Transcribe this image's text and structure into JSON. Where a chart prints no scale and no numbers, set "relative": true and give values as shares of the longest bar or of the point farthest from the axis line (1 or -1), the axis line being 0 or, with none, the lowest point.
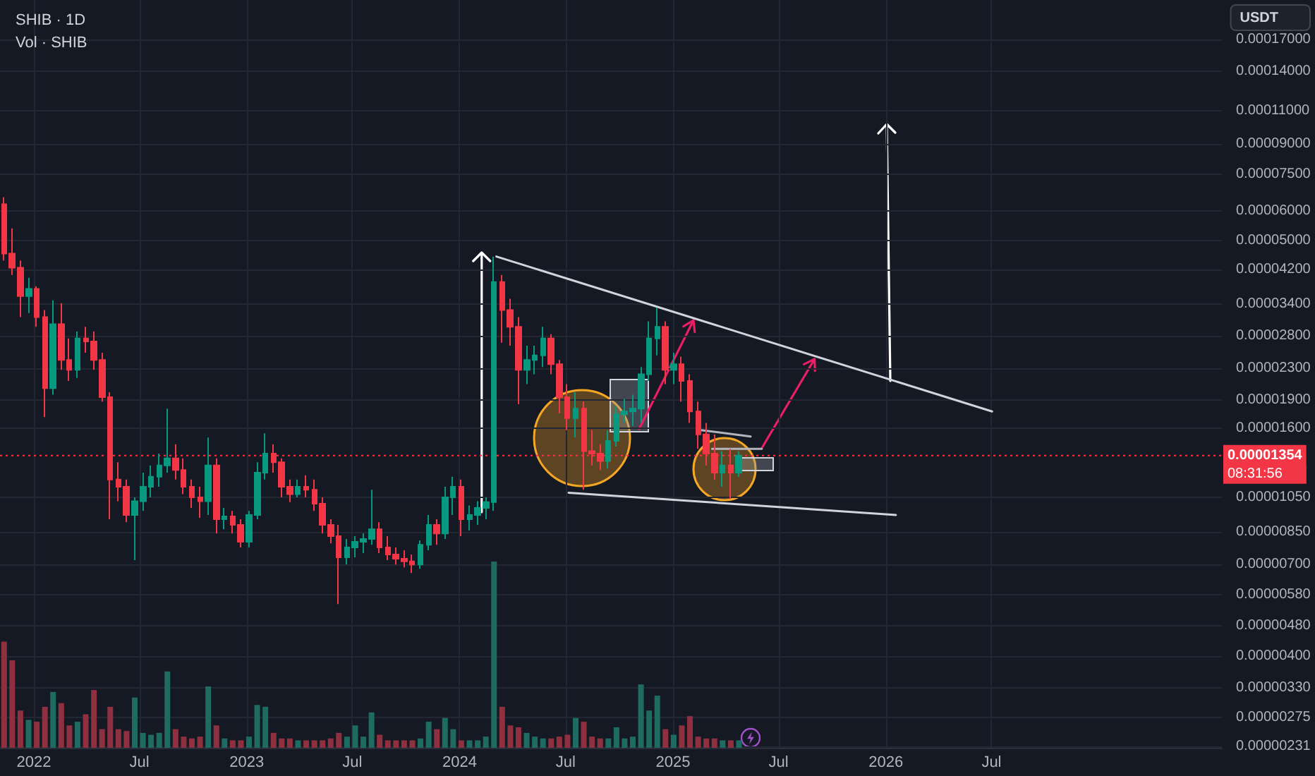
{
  "chart_data": [
    {
      "type": "candlestick",
      "title": "SHIB · 1D",
      "ylabel": "USDT",
      "log": true,
      "grid": true,
      "xlim": [
        "2021-11-04",
        "2027-07-31"
      ],
      "xticks": [
        {
          "value": "2022-01-01",
          "label": "2022"
        },
        {
          "value": "2022-07-01",
          "label": "Jul"
        },
        {
          "value": "2023-01-01",
          "label": "2023"
        },
        {
          "value": "2023-07-01",
          "label": "Jul"
        },
        {
          "value": "2024-01-01",
          "label": "2024"
        },
        {
          "value": "2024-07-01",
          "label": "Jul"
        },
        {
          "value": "2025-01-01",
          "label": "2025"
        },
        {
          "value": "2025-07-01",
          "label": "Jul"
        },
        {
          "value": "2026-01-01",
          "label": "2026"
        },
        {
          "value": "2026-07-01",
          "label": "Jul"
        }
      ],
      "ylim": [
        2.29e-06,
        0.000216
      ],
      "yticks": [
        {
          "value": 0.00017,
          "label": "0.00017000"
        },
        {
          "value": 0.00014,
          "label": "0.00014000"
        },
        {
          "value": 0.00011,
          "label": "0.00011000"
        },
        {
          "value": 9e-05,
          "label": "0.00009000"
        },
        {
          "value": 7.5e-05,
          "label": "0.00007500"
        },
        {
          "value": 6e-05,
          "label": "0.00006000"
        },
        {
          "value": 5e-05,
          "label": "0.00005000"
        },
        {
          "value": 4.2e-05,
          "label": "0.00004200"
        },
        {
          "value": 3.4e-05,
          "label": "0.00003400"
        },
        {
          "value": 2.8e-05,
          "label": "0.00002800"
        },
        {
          "value": 2.3e-05,
          "label": "0.00002300"
        },
        {
          "value": 1.9e-05,
          "label": "0.00001900"
        },
        {
          "value": 1.6e-05,
          "label": "0.00001600"
        },
        {
          "value": 1.05e-05,
          "label": "0.00001050"
        },
        {
          "value": 8.5e-06,
          "label": "0.00000850"
        },
        {
          "value": 7e-06,
          "label": "0.00000700"
        },
        {
          "value": 5.8e-06,
          "label": "0.00000580"
        },
        {
          "value": 4.8e-06,
          "label": "0.00000480"
        },
        {
          "value": 4e-06,
          "label": "0.00000400"
        },
        {
          "value": 3.3e-06,
          "label": "0.00000330"
        },
        {
          "value": 2.75e-06,
          "label": "0.00000275"
        },
        {
          "value": 2.31e-06,
          "label": "0.00000231"
        }
      ],
      "ref_lines": [
        {
          "axis": "y",
          "value": 1.354e-05,
          "label": "0.00001354",
          "color": "#f23645",
          "line_style": "dotted"
        }
      ],
      "annotations": [
        "08:31:56"
      ],
      "series": [
        {
          "type": "candlestick",
          "x": [
            "2021-11-11",
            "2021-11-25",
            "2021-12-09",
            "2021-12-23",
            "2022-01-06",
            "2022-01-20",
            "2022-02-03",
            "2022-02-17",
            "2022-03-03",
            "2022-03-17",
            "2022-03-31",
            "2022-04-14",
            "2022-04-28",
            "2022-05-12",
            "2022-05-26",
            "2022-06-09",
            "2022-06-23",
            "2022-07-07",
            "2022-07-21",
            "2022-08-04",
            "2022-08-18",
            "2022-09-01",
            "2022-09-15",
            "2022-09-29",
            "2022-10-13",
            "2022-10-27",
            "2022-11-10",
            "2022-11-24",
            "2022-12-08",
            "2022-12-22",
            "2023-01-05",
            "2023-01-19",
            "2023-02-02",
            "2023-02-16",
            "2023-03-02",
            "2023-03-16",
            "2023-03-30",
            "2023-04-13",
            "2023-04-27",
            "2023-05-11",
            "2023-05-25",
            "2023-06-08",
            "2023-06-22",
            "2023-07-06",
            "2023-07-20",
            "2023-08-03",
            "2023-08-17",
            "2023-08-31",
            "2023-09-14",
            "2023-09-28",
            "2023-10-12",
            "2023-10-26",
            "2023-11-09",
            "2023-11-23",
            "2023-12-07",
            "2023-12-21",
            "2024-01-04",
            "2024-01-18",
            "2024-02-01",
            "2024-02-15",
            "2024-02-29",
            "2024-03-14",
            "2024-03-28",
            "2024-04-11",
            "2024-04-25",
            "2024-05-09",
            "2024-05-23",
            "2024-06-06",
            "2024-06-20",
            "2024-07-04",
            "2024-07-18",
            "2024-08-01",
            "2024-08-15",
            "2024-08-29",
            "2024-09-12",
            "2024-09-26",
            "2024-10-10",
            "2024-10-24",
            "2024-11-07",
            "2024-11-21",
            "2024-12-05",
            "2024-12-19",
            "2025-01-02",
            "2025-01-16",
            "2025-01-30",
            "2025-02-13",
            "2025-02-27",
            "2025-03-13",
            "2025-03-27",
            "2025-04-10",
            "2025-04-24"
          ],
          "ohlc": [
            [
              6.24e-05,
              6.51e-05,
              4.43e-05,
              4.62e-05
            ],
            [
              4.62e-05,
              5.39e-05,
              4.06e-05,
              4.24e-05
            ],
            [
              4.24e-05,
              4.43e-05,
              3.14e-05,
              3.57e-05
            ],
            [
              3.57e-05,
              3.99e-05,
              3.22e-05,
              3.73e-05
            ],
            [
              3.73e-05,
              3.79e-05,
              2.96e-05,
              3.14e-05
            ],
            [
              3.14e-05,
              3.28e-05,
              1.71e-05,
              2.04e-05
            ],
            [
              2.04e-05,
              3.48e-05,
              1.96e-05,
              3.01e-05
            ],
            [
              3.01e-05,
              3.42e-05,
              2.28e-05,
              2.42e-05
            ],
            [
              2.42e-05,
              2.76e-05,
              2.13e-05,
              2.28e-05
            ],
            [
              2.28e-05,
              2.88e-05,
              2.17e-05,
              2.76e-05
            ],
            [
              2.76e-05,
              2.96e-05,
              2.53e-05,
              2.71e-05
            ],
            [
              2.71e-05,
              2.88e-05,
              2.28e-05,
              2.42e-05
            ],
            [
              2.42e-05,
              2.53e-05,
              1.88e-05,
              1.93e-05
            ],
            [
              1.93e-05,
              1.99e-05,
              9.19e-06,
              1.17e-05
            ],
            [
              1.17e-05,
              1.3e-05,
              1.025e-05,
              1.12e-05
            ],
            [
              1.12e-05,
              1.17e-05,
              9.03e-06,
              9.43e-06
            ],
            [
              9.43e-06,
              1.05e-05,
              7.17e-06,
              1.025e-05
            ],
            [
              1.025e-05,
              1.22e-05,
              9.67e-06,
              1.12e-05
            ],
            [
              1.12e-05,
              1.275e-05,
              1.05e-05,
              1.19e-05
            ],
            [
              1.19e-05,
              1.37e-05,
              1.12e-05,
              1.275e-05
            ],
            [
              1.275e-05,
              1.8e-05,
              1.22e-05,
              1.33e-05
            ],
            [
              1.33e-05,
              1.45e-05,
              1.17e-05,
              1.24e-05
            ],
            [
              1.24e-05,
              1.33e-05,
              1.07e-05,
              1.12e-05
            ],
            [
              1.12e-05,
              1.17e-05,
              9.84e-06,
              1.05e-05
            ],
            [
              1.05e-05,
              1.12e-05,
              9.27e-06,
              1.025e-05
            ],
            [
              1.025e-05,
              1.51e-05,
              9.43e-06,
              1.275e-05
            ],
            [
              1.275e-05,
              1.33e-05,
              8.43e-06,
              9.19e-06
            ],
            [
              9.19e-06,
              9.84e-06,
              8.65e-06,
              9.35e-06
            ],
            [
              9.35e-06,
              9.67e-06,
              8.43e-06,
              8.88e-06
            ],
            [
              8.88e-06,
              9.19e-06,
              7.74e-06,
              8.01e-06
            ],
            [
              8.01e-06,
              9.67e-06,
              7.74e-06,
              9.43e-06
            ],
            [
              9.43e-06,
              1.3e-05,
              9.19e-06,
              1.22e-05
            ],
            [
              1.22e-05,
              1.55e-05,
              1.17e-05,
              1.37e-05
            ],
            [
              1.37e-05,
              1.45e-05,
              1.22e-05,
              1.3e-05
            ],
            [
              1.3e-05,
              1.33e-05,
              1.05e-05,
              1.12e-05
            ],
            [
              1.12e-05,
              1.17e-05,
              1.02e-05,
              1.07e-05
            ],
            [
              1.07e-05,
              1.17e-05,
              1.05e-05,
              1.12e-05
            ],
            [
              1.12e-05,
              1.2e-05,
              1.05e-05,
              1.1e-05
            ],
            [
              1.1e-05,
              1.17e-05,
              9.67e-06,
              1.01e-05
            ],
            [
              1.01e-05,
              1.05e-05,
              8.43e-06,
              8.88e-06
            ],
            [
              8.88e-06,
              9.19e-06,
              7.94e-06,
              8.29e-06
            ],
            [
              8.29e-06,
              8.88e-06,
              5.49e-06,
              7.29e-06
            ],
            [
              7.29e-06,
              8.15e-06,
              6.98e-06,
              7.74e-06
            ],
            [
              7.74e-06,
              8.29e-06,
              7.29e-06,
              8.01e-06
            ],
            [
              8.01e-06,
              8.43e-06,
              7.48e-06,
              8.15e-06
            ],
            [
              8.15e-06,
              1.1e-05,
              7.87e-06,
              8.65e-06
            ],
            [
              8.65e-06,
              9.03e-06,
              7.48e-06,
              7.74e-06
            ],
            [
              7.74e-06,
              8.29e-06,
              7.17e-06,
              7.42e-06
            ],
            [
              7.42e-06,
              7.74e-06,
              6.98e-06,
              7.23e-06
            ],
            [
              7.23e-06,
              7.61e-06,
              6.86e-06,
              7.11e-06
            ],
            [
              7.11e-06,
              7.42e-06,
              6.63e-06,
              6.98e-06
            ],
            [
              6.98e-06,
              8.08e-06,
              6.8e-06,
              7.87e-06
            ],
            [
              7.87e-06,
              9.43e-06,
              7.61e-06,
              8.88e-06
            ],
            [
              8.88e-06,
              9.19e-06,
              7.87e-06,
              8.43e-06
            ],
            [
              8.43e-06,
              1.12e-05,
              8.15e-06,
              1.05e-05
            ],
            [
              1.05e-05,
              1.19e-05,
              9.43e-06,
              1.12e-05
            ],
            [
              1.12e-05,
              1.17e-05,
              8.29e-06,
              9.19e-06
            ],
            [
              9.19e-06,
              9.99e-06,
              8.58e-06,
              9.43e-06
            ],
            [
              9.43e-06,
              1.025e-05,
              8.88e-06,
              9.84e-06
            ],
            [
              9.84e-06,
              1.05e-05,
              9.19e-06,
              1.02e-05
            ],
            [
              1.02e-05,
              4.54e-05,
              9.67e-06,
              3.89e-05
            ],
            [
              3.89e-05,
              4.06e-05,
              2.69e-05,
              3.28e-05
            ],
            [
              3.28e-05,
              3.51e-05,
              2.64e-05,
              2.96e-05
            ],
            [
              2.96e-05,
              3.14e-05,
              1.85e-05,
              2.28e-05
            ],
            [
              2.28e-05,
              2.64e-05,
              2.09e-05,
              2.42e-05
            ],
            [
              2.42e-05,
              2.64e-05,
              2.22e-05,
              2.49e-05
            ],
            [
              2.49e-05,
              2.96e-05,
              2.32e-05,
              2.76e-05
            ],
            [
              2.76e-05,
              2.83e-05,
              2.22e-05,
              2.36e-05
            ],
            [
              2.36e-05,
              2.42e-05,
              1.75e-05,
              1.93e-05
            ],
            [
              1.93e-05,
              2.09e-05,
              1.58e-05,
              1.7e-05
            ],
            [
              1.7e-05,
              1.99e-05,
              1.51e-05,
              1.8e-05
            ],
            [
              1.8e-05,
              1.88e-05,
              1.1e-05,
              1.39e-05
            ],
            [
              1.39e-05,
              1.58e-05,
              1.275e-05,
              1.37e-05
            ],
            [
              1.37e-05,
              1.45e-05,
              1.24e-05,
              1.31e-05
            ],
            [
              1.31e-05,
              1.58e-05,
              1.25e-05,
              1.48e-05
            ],
            [
              1.48e-05,
              1.83e-05,
              1.43e-05,
              1.74e-05
            ],
            [
              1.74e-05,
              1.91e-05,
              1.65e-05,
              1.77e-05
            ],
            [
              1.77e-05,
              1.96e-05,
              1.62e-05,
              1.8e-05
            ],
            [
              1.8e-05,
              2.32e-05,
              1.65e-05,
              2.22e-05
            ],
            [
              2.22e-05,
              3.06e-05,
              2.13e-05,
              2.76e-05
            ],
            [
              2.76e-05,
              3.33e-05,
              2.49e-05,
              2.96e-05
            ],
            [
              2.96e-05,
              3.06e-05,
              2.09e-05,
              2.28e-05
            ],
            [
              2.28e-05,
              2.53e-05,
              2.09e-05,
              2.36e-05
            ],
            [
              2.36e-05,
              2.47e-05,
              1.88e-05,
              2.13e-05
            ],
            [
              2.13e-05,
              2.22e-05,
              1.65e-05,
              1.77e-05
            ],
            [
              1.77e-05,
              1.88e-05,
              1.41e-05,
              1.54e-05
            ],
            [
              1.54e-05,
              1.65e-05,
              1.275e-05,
              1.37e-05
            ],
            [
              1.37e-05,
              1.54e-05,
              1.17e-05,
              1.22e-05
            ],
            [
              1.22e-05,
              1.39e-05,
              1.12e-05,
              1.275e-05
            ],
            [
              1.275e-05,
              1.41e-05,
              1.04e-05,
              1.22e-05
            ],
            [
              1.22e-05,
              1.39e-05,
              1.19e-05,
              1.354e-05
            ]
          ],
          "colors": [
            "#f23645",
            "#f23645",
            "#f23645",
            "#089981",
            "#f23645",
            "#f23645",
            "#089981",
            "#f23645",
            "#f23645",
            "#089981",
            "#f23645",
            "#f23645",
            "#f23645",
            "#f23645",
            "#f23645",
            "#f23645",
            "#089981",
            "#089981",
            "#089981",
            "#089981",
            "#089981",
            "#f23645",
            "#f23645",
            "#f23645",
            "#f23645",
            "#089981",
            "#f23645",
            "#089981",
            "#f23645",
            "#f23645",
            "#089981",
            "#089981",
            "#089981",
            "#f23645",
            "#f23645",
            "#f23645",
            "#089981",
            "#f23645",
            "#f23645",
            "#f23645",
            "#f23645",
            "#f23645",
            "#089981",
            "#089981",
            "#089981",
            "#089981",
            "#f23645",
            "#f23645",
            "#f23645",
            "#f23645",
            "#f23645",
            "#089981",
            "#089981",
            "#f23645",
            "#089981",
            "#089981",
            "#f23645",
            "#089981",
            "#089981",
            "#089981",
            "#089981",
            "#f23645",
            "#f23645",
            "#f23645",
            "#089981",
            "#089981",
            "#089981",
            "#f23645",
            "#f23645",
            "#f23645",
            "#089981",
            "#f23645",
            "#f23645",
            "#f23645",
            "#089981",
            "#089981",
            "#089981",
            "#089981",
            "#089981",
            "#089981",
            "#089981",
            "#f23645",
            "#089981",
            "#f23645",
            "#f23645",
            "#f23645",
            "#f23645",
            "#f23645",
            "#089981",
            "#f23645",
            "#089981"
          ]
        },
        {
          "type": "line",
          "x": [
            "2024-03-04",
            "2026-07-02"
          ],
          "values": [
            4.54e-05,
            1.77e-05
          ],
          "color": "#d1d4dc"
        },
        {
          "type": "line",
          "x": [
            "2024-07-06",
            "2026-01-18"
          ],
          "values": [
            1.08e-05,
            9.43e-06
          ],
          "color": "#d1d4dc"
        },
        {
          "type": "line",
          "x": [
            "2025-02-18",
            "2025-05-14"
          ],
          "values": [
            1.58e-05,
            1.52e-05
          ],
          "color": "#b2b5be"
        },
        {
          "type": "line",
          "x": [
            "2025-03-09",
            "2025-06-02"
          ],
          "values": [
            1.41e-05,
            1.41e-05
          ],
          "color": "#b2b5be"
        }
      ]
    },
    {
      "type": "bar",
      "title": "Vol · SHIB",
      "relative": true,
      "xlim": [
        "2021-11-04",
        "2027-07-31"
      ],
      "x": [
        "2021-11-11",
        "2021-11-25",
        "2021-12-09",
        "2021-12-23",
        "2022-01-06",
        "2022-01-20",
        "2022-02-03",
        "2022-02-17",
        "2022-03-03",
        "2022-03-17",
        "2022-03-31",
        "2022-04-14",
        "2022-04-28",
        "2022-05-12",
        "2022-05-26",
        "2022-06-09",
        "2022-06-23",
        "2022-07-07",
        "2022-07-21",
        "2022-08-04",
        "2022-08-18",
        "2022-09-01",
        "2022-09-15",
        "2022-09-29",
        "2022-10-13",
        "2022-10-27",
        "2022-11-10",
        "2022-11-24",
        "2022-12-08",
        "2022-12-22",
        "2023-01-05",
        "2023-01-19",
        "2023-02-02",
        "2023-02-16",
        "2023-03-02",
        "2023-03-16",
        "2023-03-30",
        "2023-04-13",
        "2023-04-27",
        "2023-05-11",
        "2023-05-25",
        "2023-06-08",
        "2023-06-22",
        "2023-07-06",
        "2023-07-20",
        "2023-08-03",
        "2023-08-17",
        "2023-08-31",
        "2023-09-14",
        "2023-09-28",
        "2023-10-12",
        "2023-10-26",
        "2023-11-09",
        "2023-11-23",
        "2023-12-07",
        "2023-12-21",
        "2024-01-04",
        "2024-01-18",
        "2024-02-01",
        "2024-02-15",
        "2024-02-29",
        "2024-03-14",
        "2024-03-28",
        "2024-04-11",
        "2024-04-25",
        "2024-05-09",
        "2024-05-23",
        "2024-06-06",
        "2024-06-20",
        "2024-07-04",
        "2024-07-18",
        "2024-08-01",
        "2024-08-15",
        "2024-08-29",
        "2024-09-12",
        "2024-09-26",
        "2024-10-10",
        "2024-10-24",
        "2024-11-07",
        "2024-11-21",
        "2024-12-05",
        "2024-12-19",
        "2025-01-02",
        "2025-01-16",
        "2025-01-30",
        "2025-02-13",
        "2025-02-27",
        "2025-03-13",
        "2025-03-27",
        "2025-04-10",
        "2025-04-24"
      ],
      "values": [
        0.57,
        0.47,
        0.2,
        0.15,
        0.14,
        0.22,
        0.3,
        0.24,
        0.12,
        0.14,
        0.18,
        0.31,
        0.1,
        0.22,
        0.1,
        0.09,
        0.27,
        0.08,
        0.07,
        0.08,
        0.41,
        0.1,
        0.06,
        0.05,
        0.06,
        0.33,
        0.12,
        0.05,
        0.04,
        0.04,
        0.06,
        0.23,
        0.22,
        0.08,
        0.05,
        0.05,
        0.04,
        0.04,
        0.04,
        0.04,
        0.05,
        0.08,
        0.06,
        0.12,
        0.06,
        0.19,
        0.07,
        0.04,
        0.04,
        0.04,
        0.04,
        0.05,
        0.14,
        0.1,
        0.16,
        0.1,
        0.04,
        0.04,
        0.04,
        0.06,
        1,
        0.22,
        0.12,
        0.11,
        0.08,
        0.06,
        0.05,
        0.05,
        0.06,
        0.07,
        0.16,
        0.14,
        0.06,
        0.05,
        0.05,
        0.11,
        0.05,
        0.06,
        0.34,
        0.2,
        0.28,
        0.1,
        0.07,
        0.12,
        0.17,
        0.06,
        0.05,
        0.05,
        0.04,
        0.04,
        0.04
      ],
      "colors": [
        "#8e3040",
        "#8e3040",
        "#8e3040",
        "#1e6b62",
        "#8e3040",
        "#8e3040",
        "#1e6b62",
        "#8e3040",
        "#8e3040",
        "#1e6b62",
        "#8e3040",
        "#8e3040",
        "#8e3040",
        "#8e3040",
        "#8e3040",
        "#8e3040",
        "#1e6b62",
        "#1e6b62",
        "#1e6b62",
        "#1e6b62",
        "#1e6b62",
        "#8e3040",
        "#8e3040",
        "#8e3040",
        "#8e3040",
        "#1e6b62",
        "#8e3040",
        "#1e6b62",
        "#8e3040",
        "#8e3040",
        "#1e6b62",
        "#1e6b62",
        "#1e6b62",
        "#8e3040",
        "#8e3040",
        "#8e3040",
        "#1e6b62",
        "#8e3040",
        "#8e3040",
        "#8e3040",
        "#8e3040",
        "#8e3040",
        "#1e6b62",
        "#1e6b62",
        "#1e6b62",
        "#1e6b62",
        "#8e3040",
        "#8e3040",
        "#8e3040",
        "#8e3040",
        "#8e3040",
        "#1e6b62",
        "#1e6b62",
        "#8e3040",
        "#1e6b62",
        "#1e6b62",
        "#8e3040",
        "#1e6b62",
        "#1e6b62",
        "#1e6b62",
        "#1e6b62",
        "#8e3040",
        "#8e3040",
        "#8e3040",
        "#1e6b62",
        "#1e6b62",
        "#1e6b62",
        "#8e3040",
        "#8e3040",
        "#8e3040",
        "#1e6b62",
        "#8e3040",
        "#8e3040",
        "#8e3040",
        "#1e6b62",
        "#1e6b62",
        "#1e6b62",
        "#1e6b62",
        "#1e6b62",
        "#1e6b62",
        "#1e6b62",
        "#8e3040",
        "#1e6b62",
        "#8e3040",
        "#8e3040",
        "#8e3040",
        "#8e3040",
        "#8e3040",
        "#1e6b62",
        "#8e3040",
        "#1e6b62"
      ]
    }
  ]
}
